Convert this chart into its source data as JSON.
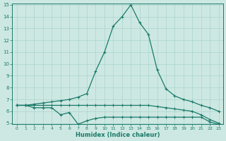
{
  "xlabel": "Humidex (Indice chaleur)",
  "color": "#1a7a6a",
  "bg_color": "#cde8e2",
  "grid_color": "#aad4cc",
  "ylim": [
    5,
    15
  ],
  "xlim": [
    -0.5,
    23.5
  ],
  "yticks": [
    5,
    6,
    7,
    8,
    9,
    10,
    11,
    12,
    13,
    14,
    15
  ],
  "xticks": [
    0,
    1,
    2,
    3,
    4,
    5,
    6,
    7,
    8,
    9,
    10,
    11,
    12,
    13,
    14,
    15,
    16,
    17,
    18,
    19,
    20,
    21,
    22,
    23
  ],
  "x": [
    0,
    1,
    2,
    3,
    4,
    5,
    6,
    7,
    8,
    9,
    10,
    11,
    12,
    13,
    14,
    15,
    16,
    17,
    18,
    19,
    20,
    21,
    22,
    23
  ],
  "series1": [
    6.5,
    6.5,
    6.5,
    6.5,
    6.5,
    6.5,
    6.5,
    6.5,
    6.5,
    6.5,
    6.5,
    6.5,
    6.5,
    6.5,
    6.5,
    6.5,
    6.4,
    6.3,
    6.2,
    6.1,
    6.0,
    5.7,
    5.3,
    5.0
  ],
  "series2": [
    6.5,
    6.5,
    6.3,
    6.3,
    6.3,
    5.7,
    5.9,
    4.9,
    5.2,
    5.4,
    5.5,
    5.5,
    5.5,
    5.5,
    5.5,
    5.5,
    5.5,
    5.5,
    5.5,
    5.5,
    5.5,
    5.5,
    5.1,
    4.9
  ],
  "series3": [
    6.5,
    6.5,
    6.6,
    6.7,
    6.8,
    6.9,
    7.0,
    7.2,
    7.5,
    9.4,
    11.0,
    13.2,
    14.0,
    15.0,
    13.5,
    12.5,
    9.5,
    7.9,
    7.3,
    7.0,
    6.8,
    6.5,
    6.3,
    6.0
  ]
}
